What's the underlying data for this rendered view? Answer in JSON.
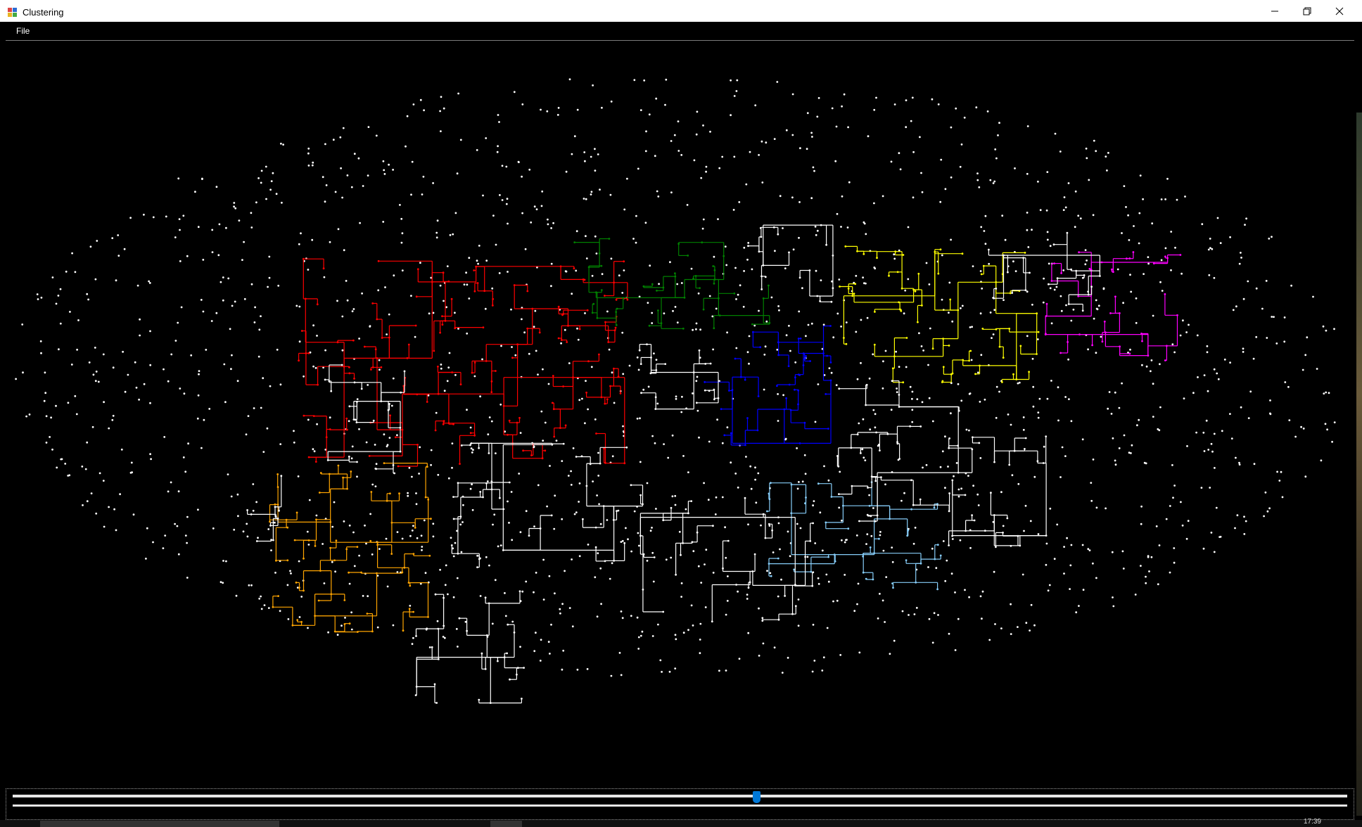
{
  "window": {
    "title": "Clustering",
    "controls": {
      "minimize": "—",
      "restore": "❐",
      "close": "✕"
    }
  },
  "menu": {
    "items": [
      {
        "label": "File"
      }
    ]
  },
  "plot": {
    "background": "#000000",
    "point_color": "#ffffff",
    "cluster_colors": {
      "red": "#ff0000",
      "green": "#008000",
      "blue": "#0000ff",
      "yellow": "#ffff00",
      "magenta": "#ff00ff",
      "orange": "#ffa500",
      "light_blue": "#87cefa",
      "unclustered": "#ffffff"
    }
  },
  "slider": {
    "value_fraction": 0.56,
    "thumb_color": "#0078d7"
  },
  "status": {
    "text": "17:39"
  }
}
